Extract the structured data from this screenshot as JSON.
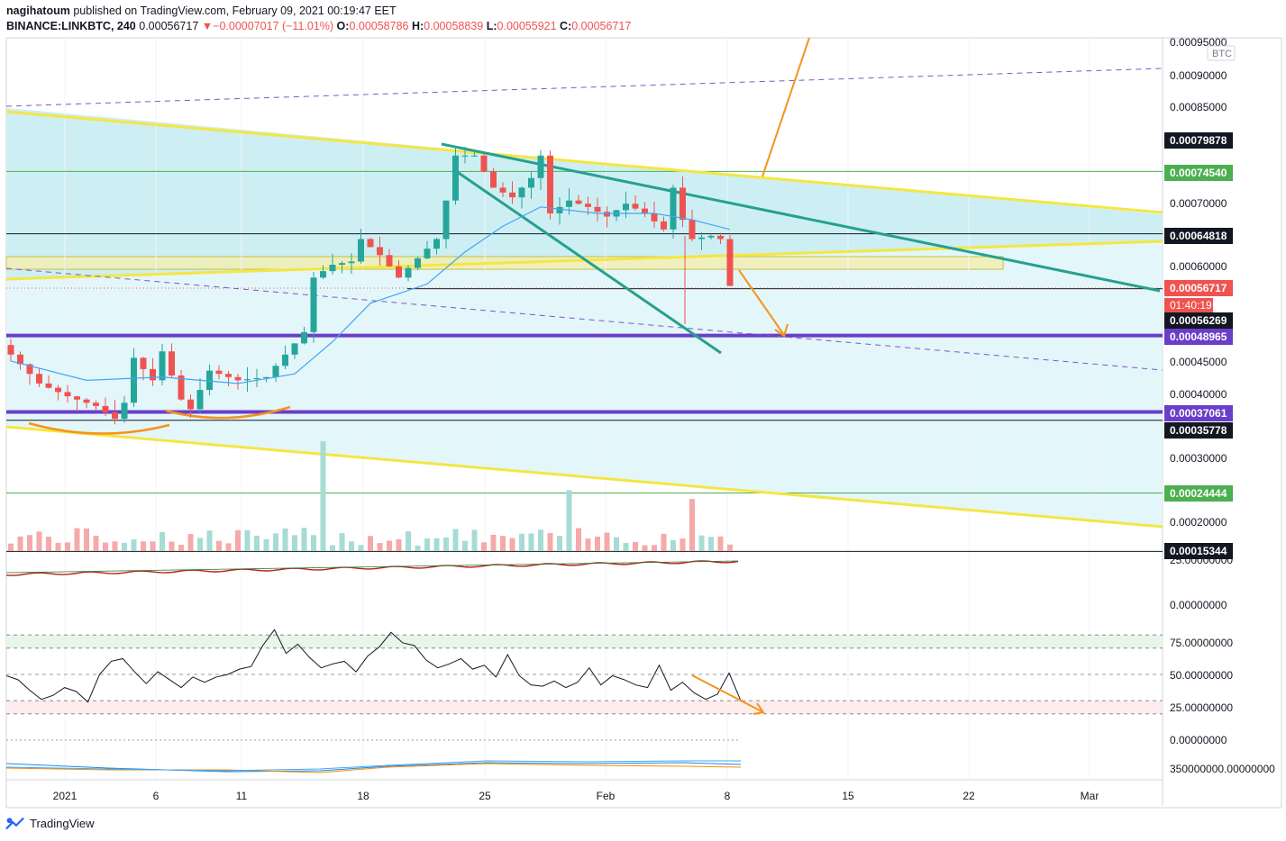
{
  "header": {
    "author": "nagihatoum",
    "published": "published on TradingView.com, February 09, 2021 00:19:47 EET",
    "symbol": "BINANCE:LINKBTC, 240",
    "last": "0.00056717",
    "change_arrow": "▼",
    "change": "−0.00007017 (−11.01%)",
    "open_label": "O:",
    "open": "0.00058786",
    "high_label": "H:",
    "high": "0.00058839",
    "low_label": "L:",
    "low": "0.00055921",
    "close_label": "C:",
    "close": "0.00056717"
  },
  "currency_badge": "BTC",
  "countdown": "01:40:19",
  "footer": {
    "brand": "TradingView"
  },
  "colors": {
    "up": "#26a69a",
    "down": "#ef5350",
    "yellow": "#f5e642",
    "teal": "#26a08e",
    "purple": "#6a3ec9",
    "orange": "#f7931a",
    "channel_fill": "#e3f6fa"
  },
  "chart_data": {
    "type": "candlestick",
    "title": "BINANCE:LINKBTC, 240",
    "ylabel": "BTC",
    "ylim": [
      0.00015,
      0.00096
    ],
    "x_ticks": [
      "2021",
      "6",
      "11",
      "18",
      "25",
      "Feb",
      "8",
      "15",
      "22",
      "Mar"
    ],
    "price_axis_ticks": [
      "0.00095000",
      "0.00090000",
      "0.00085000",
      "0.00070000",
      "0.00060000",
      "0.00045000",
      "0.00040000",
      "0.00030000",
      "0.00020000"
    ],
    "price_labels": [
      {
        "value": "0.00079878",
        "style": "dark"
      },
      {
        "value": "0.00074540",
        "style": "green"
      },
      {
        "value": "0.00064818",
        "style": "dark"
      },
      {
        "value": "0.00056717",
        "style": "red"
      },
      {
        "value": "0.00056269",
        "style": "dark"
      },
      {
        "value": "0.00048965",
        "style": "purple"
      },
      {
        "value": "0.00037061",
        "style": "purple"
      },
      {
        "value": "0.00035778",
        "style": "dark"
      },
      {
        "value": "0.00024444",
        "style": "green"
      },
      {
        "value": "0.00015344",
        "style": "dark"
      }
    ],
    "horizontal_levels": [
      0.0007454,
      0.00064818,
      0.00056269,
      0.00048965,
      0.00037061,
      0.00035778,
      0.00024444,
      0.00015344
    ],
    "series_points": [
      {
        "x": 0,
        "y": 0.000475
      },
      {
        "x": 4,
        "y": 0.000415
      },
      {
        "x": 7,
        "y": 0.000395
      },
      {
        "x": 10,
        "y": 0.00038
      },
      {
        "x": 12,
        "y": 0.00036
      },
      {
        "x": 13,
        "y": 0.000385
      },
      {
        "x": 14,
        "y": 0.000455
      },
      {
        "x": 16,
        "y": 0.00042
      },
      {
        "x": 17,
        "y": 0.000465
      },
      {
        "x": 19,
        "y": 0.00039
      },
      {
        "x": 20,
        "y": 0.000375
      },
      {
        "x": 22,
        "y": 0.000435
      },
      {
        "x": 25,
        "y": 0.00042
      },
      {
        "x": 28,
        "y": 0.000425
      },
      {
        "x": 30,
        "y": 0.00046
      },
      {
        "x": 32,
        "y": 0.000495
      },
      {
        "x": 33,
        "y": 0.00058
      },
      {
        "x": 35,
        "y": 0.0006
      },
      {
        "x": 37,
        "y": 0.000605
      },
      {
        "x": 38,
        "y": 0.00064
      },
      {
        "x": 40,
        "y": 0.000615
      },
      {
        "x": 42,
        "y": 0.00058
      },
      {
        "x": 44,
        "y": 0.00061
      },
      {
        "x": 46,
        "y": 0.00064
      },
      {
        "x": 47,
        "y": 0.0007
      },
      {
        "x": 48,
        "y": 0.00077
      },
      {
        "x": 50,
        "y": 0.00077
      },
      {
        "x": 52,
        "y": 0.00072
      },
      {
        "x": 54,
        "y": 0.000705
      },
      {
        "x": 56,
        "y": 0.000735
      },
      {
        "x": 57,
        "y": 0.00077
      },
      {
        "x": 58,
        "y": 0.00068
      },
      {
        "x": 60,
        "y": 0.0007
      },
      {
        "x": 62,
        "y": 0.00069
      },
      {
        "x": 64,
        "y": 0.000675
      },
      {
        "x": 66,
        "y": 0.000695
      },
      {
        "x": 68,
        "y": 0.00068
      },
      {
        "x": 70,
        "y": 0.000655
      },
      {
        "x": 71,
        "y": 0.00072
      },
      {
        "x": 72,
        "y": 0.00067
      },
      {
        "x": 73,
        "y": 0.00064
      },
      {
        "x": 75,
        "y": 0.000645
      },
      {
        "x": 76,
        "y": 0.00064
      },
      {
        "x": 77,
        "y": 0.000567
      }
    ],
    "moving_average": [
      {
        "x": 0,
        "y": 0.00045
      },
      {
        "x": 8,
        "y": 0.00042
      },
      {
        "x": 16,
        "y": 0.000425
      },
      {
        "x": 24,
        "y": 0.000415
      },
      {
        "x": 30,
        "y": 0.00043
      },
      {
        "x": 34,
        "y": 0.00048
      },
      {
        "x": 38,
        "y": 0.00054
      },
      {
        "x": 44,
        "y": 0.00057
      },
      {
        "x": 48,
        "y": 0.00062
      },
      {
        "x": 52,
        "y": 0.00066
      },
      {
        "x": 56,
        "y": 0.00069
      },
      {
        "x": 62,
        "y": 0.00068
      },
      {
        "x": 68,
        "y": 0.00068
      },
      {
        "x": 72,
        "y": 0.00067
      },
      {
        "x": 76,
        "y": 0.000655
      }
    ],
    "rsi": {
      "ticks": [
        "25.00000000",
        "0.00000000",
        "75.00000000",
        "50.00000000",
        "25.00000000",
        "0.00000000"
      ],
      "levels": {
        "overbought": 80,
        "middle": 50,
        "oversold": 30
      },
      "values": [
        49,
        46,
        38,
        31,
        34,
        40,
        37,
        29,
        50,
        60,
        62,
        52,
        43,
        52,
        46,
        40,
        48,
        44,
        48,
        50,
        54,
        56,
        72,
        84,
        66,
        73,
        63,
        55,
        58,
        60,
        52,
        64,
        71,
        82,
        74,
        72,
        61,
        55,
        58,
        62,
        54,
        57,
        48,
        65,
        49,
        42,
        41,
        45,
        40,
        44,
        55,
        42,
        49,
        46,
        42,
        40,
        57,
        38,
        44,
        36,
        31,
        35,
        51,
        30
      ]
    },
    "volume_axis_tick": "350000000.00000000"
  }
}
